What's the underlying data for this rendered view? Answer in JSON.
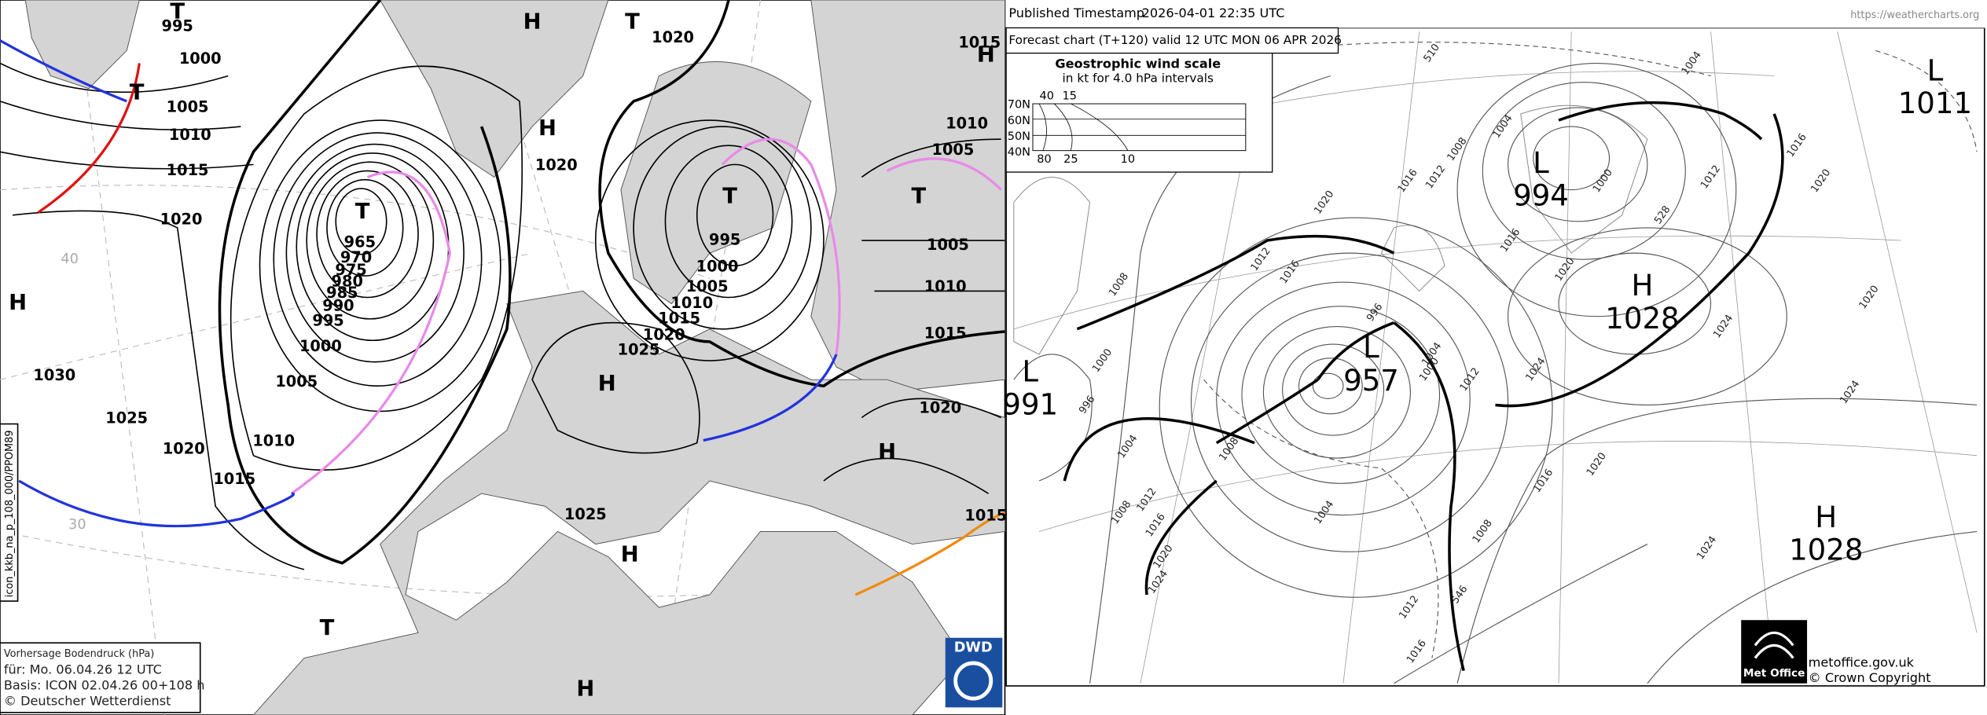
{
  "dwd": {
    "labels": [
      "T",
      "995",
      "1000",
      "T",
      "1005",
      "1010",
      "1015",
      "1020",
      "H",
      "1030",
      "1025",
      "1020",
      "1015",
      "1010",
      "1005",
      "1000",
      "995",
      "990",
      "985",
      "980",
      "975",
      "970",
      "965",
      "T",
      "H",
      "T",
      "1020",
      "H",
      "1020",
      "T",
      "995",
      "1000",
      "1005",
      "1010",
      "1015",
      "1020",
      "1025",
      "H",
      "T",
      "1015",
      "H",
      "1010",
      "1005",
      "1005",
      "1010",
      "1015",
      "1020",
      "H",
      "1015",
      "1025",
      "H",
      "T",
      "H"
    ],
    "info": [
      "Vorhersage Bodendruck (hPa)",
      "für:  Mo. 06.04.26  12 UTC",
      "Basis: ICON  02.04.26 00+108 h",
      "© Deutscher Wetterdienst"
    ],
    "file_id": "icon_kkb_na_p_108_000/PPOM89",
    "logo": "DWD",
    "grid_labels": [
      "40",
      "30"
    ]
  },
  "metoffice": {
    "header": {
      "published": "Published Timestamp",
      "date": "2026-04-01",
      "time": "22:35  UTC",
      "url": "https://weathercharts.org"
    },
    "title": "Forecast chart (T+120) valid 12 UTC MON 06  APR 2026",
    "wind_scale": {
      "title": "Geostrophic wind scale",
      "subtitle": "in kt for 4.0 hPa intervals",
      "latitudes": [
        "70N",
        "60N",
        "50N",
        "40N"
      ],
      "top_labels": [
        "40",
        "15"
      ],
      "bottom_labels": [
        "80",
        "25",
        "10"
      ]
    },
    "centers": [
      {
        "type": "L",
        "value": "1011"
      },
      {
        "type": "L",
        "value": "994"
      },
      {
        "type": "H",
        "value": "1028"
      },
      {
        "type": "L",
        "value": "957"
      },
      {
        "type": "L",
        "value": "991"
      },
      {
        "type": "H",
        "value": "1028"
      }
    ],
    "isobar_labels": [
      "1004",
      "1004",
      "1008",
      "1012",
      "1016",
      "1020",
      "1012",
      "1016",
      "1008",
      "1000",
      "996",
      "1004",
      "1008",
      "1012",
      "1016",
      "1020",
      "1024",
      "1008",
      "1004",
      "1012",
      "1016",
      "1008",
      "1016",
      "1020",
      "1024",
      "1024",
      "1024",
      "1020",
      "1016",
      "1012",
      "1016",
      "1020",
      "996",
      "1004",
      "1000",
      "1012",
      "1024",
      "1000",
      "1020",
      "510",
      "528",
      "546"
    ],
    "footer": {
      "logo": "Met Office",
      "site": "metoffice.gov.uk",
      "copyright": "© Crown Copyright"
    }
  }
}
